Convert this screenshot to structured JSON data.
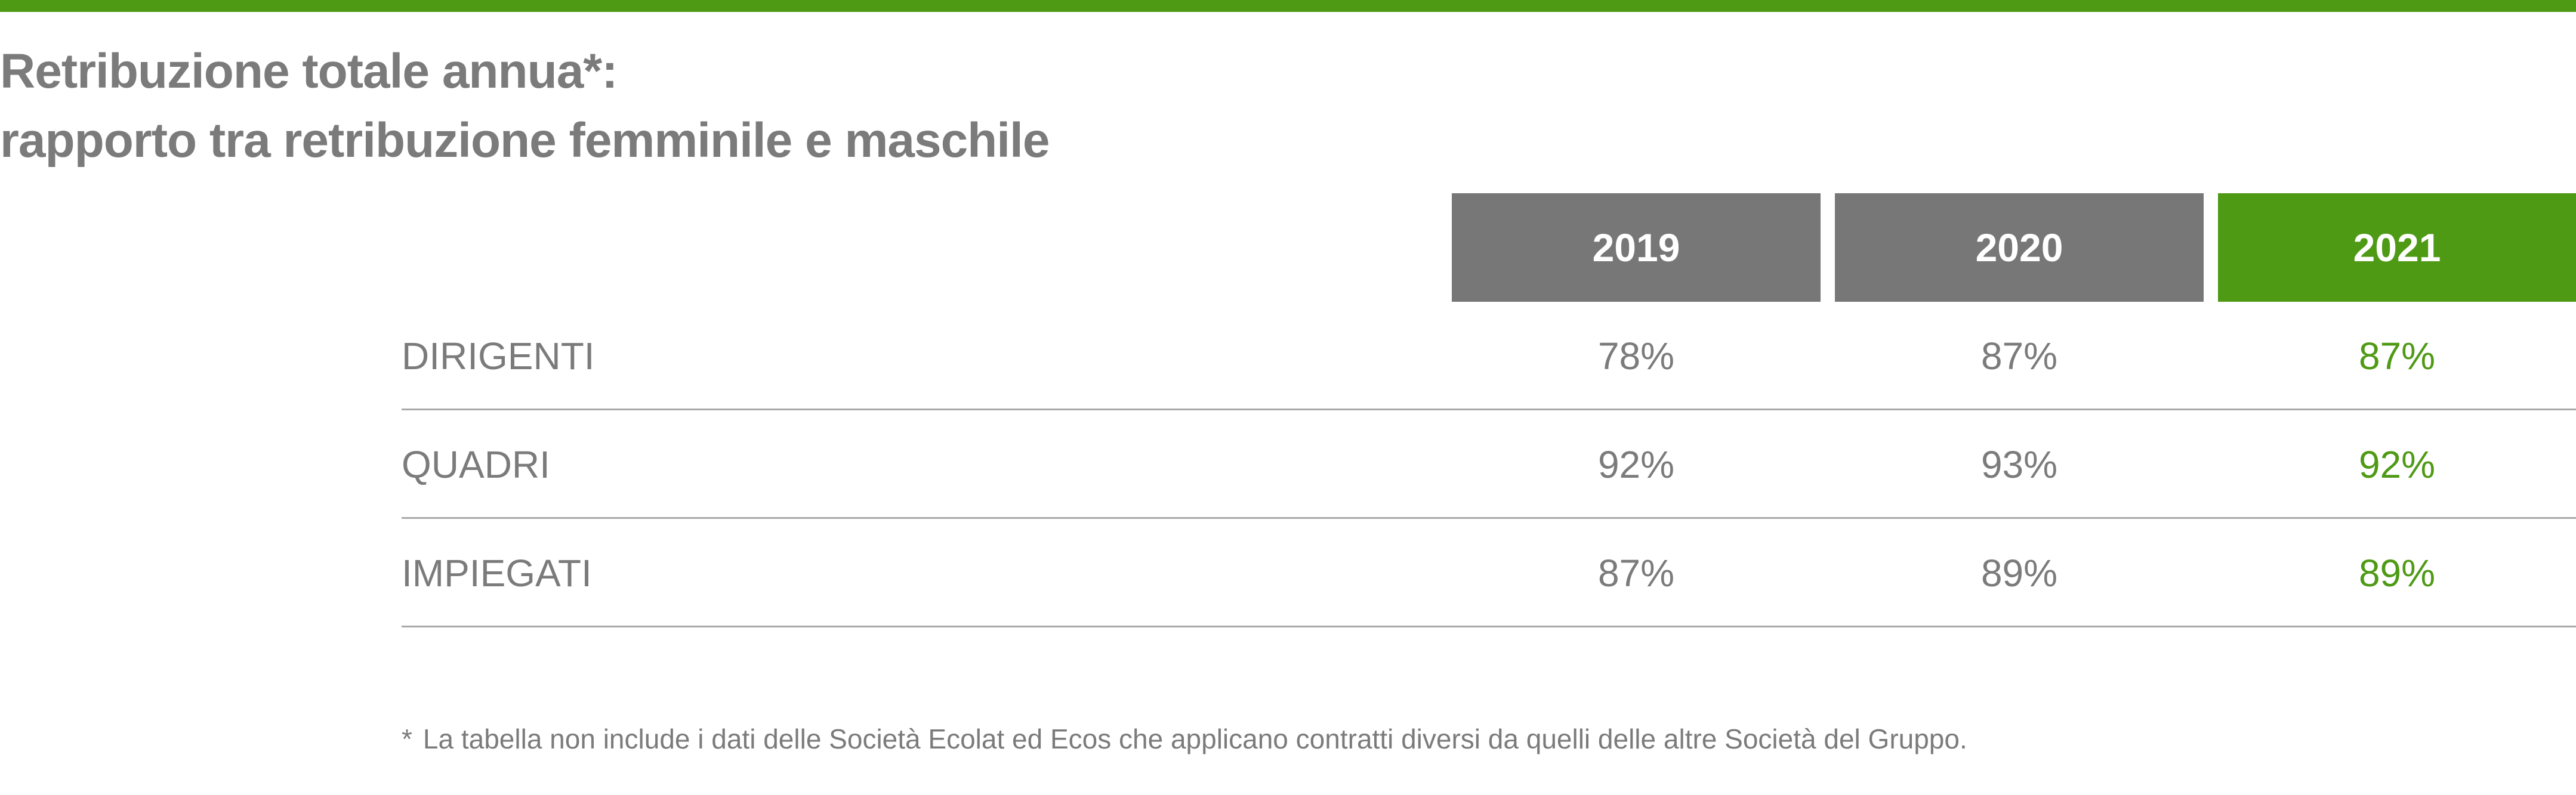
{
  "title": {
    "line1": "Retribuzione totale annua*:",
    "line2": "rapporto tra retribuzione femminile e maschile"
  },
  "table": {
    "years": [
      "2019",
      "2020",
      "2021"
    ],
    "rows": [
      {
        "label": "DIRIGENTI",
        "values": [
          "78%",
          "87%",
          "87%"
        ]
      },
      {
        "label": "QUADRI",
        "values": [
          "92%",
          "93%",
          "92%"
        ]
      },
      {
        "label": "IMPIEGATI",
        "values": [
          "87%",
          "89%",
          "89%"
        ]
      }
    ]
  },
  "footnote": {
    "marker": "*",
    "text": "La tabella non include i dati delle Società Ecolat ed Ecos che applicano contratti diversi da quelli delle altre Società del Gruppo."
  },
  "colors": {
    "accent_green": "#4f9a15",
    "header_gray": "#777777",
    "text_gray": "#7b7b7b"
  }
}
